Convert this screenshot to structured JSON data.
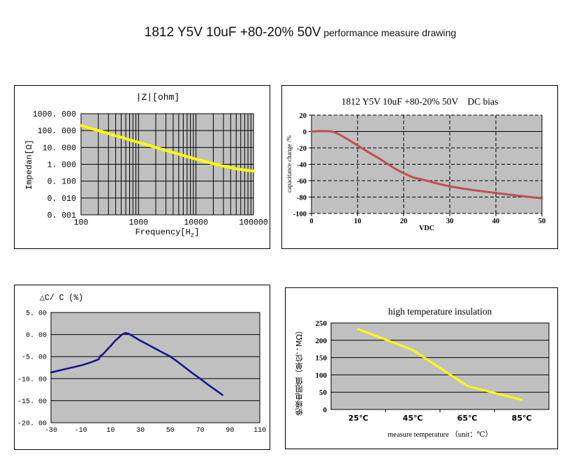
{
  "page": {
    "title_main": "1812 Y5V 10uF +80-20% 50V",
    "title_sub": " performance measure drawing"
  },
  "colors": {
    "plot_bg": "#c0c0c0",
    "grid": "#000000",
    "panel_border": "#000000",
    "impedance_line": "#ffff00",
    "dc_bias_line": "#c0504d",
    "delta_c_line": "#16168c",
    "insulation_line": "#ffff00"
  },
  "chart_data": [
    {
      "id": "impedance",
      "type": "line",
      "title": "|Z|[ohm]",
      "ylabel": "Impedan[Ω]",
      "xlabel_main": "Frequency[H",
      "xlabel_sub": "z",
      "xlabel_close": "]",
      "xscale": "log",
      "yscale": "log",
      "xlim": [
        100,
        100000
      ],
      "ylim": [
        0.001,
        1000
      ],
      "xticks": [
        {
          "v": 100,
          "label": "100"
        },
        {
          "v": 1000,
          "label": "1000"
        },
        {
          "v": 10000,
          "label": "10000"
        },
        {
          "v": 100000,
          "label": "100000"
        }
      ],
      "yticks": [
        {
          "v": 1000,
          "label": "1000. 000"
        },
        {
          "v": 100,
          "label": "100. 000"
        },
        {
          "v": 10,
          "label": "10. 000"
        },
        {
          "v": 1,
          "label": "1. 000"
        },
        {
          "v": 0.1,
          "label": "0. 100"
        },
        {
          "v": 0.01,
          "label": "0. 010"
        },
        {
          "v": 0.001,
          "label": "0. 001"
        }
      ],
      "grid": "log minor vertical, major horizontal, solid",
      "line_color": "#ffff00",
      "points": [
        [
          100,
          199
        ],
        [
          150,
          132.7
        ],
        [
          200,
          99.5
        ],
        [
          300,
          66.3
        ],
        [
          400,
          49.8
        ],
        [
          600,
          33.2
        ],
        [
          800,
          24.9
        ],
        [
          1000,
          19.9
        ],
        [
          1500,
          13.3
        ],
        [
          2000,
          9.95
        ],
        [
          3000,
          6.64
        ],
        [
          5000,
          3.99
        ],
        [
          7000,
          2.87
        ],
        [
          10000,
          2.03
        ],
        [
          15000,
          1.4
        ],
        [
          20000,
          1.08
        ],
        [
          30000,
          0.78
        ],
        [
          50000,
          0.54
        ],
        [
          70000,
          0.46
        ],
        [
          100000,
          0.4
        ]
      ]
    },
    {
      "id": "dc-bias",
      "type": "line",
      "title": "1812 Y5V 10uF +80-20% 50V    DC bias",
      "ylabel": "capacitance change /%",
      "xlabel": "VDC",
      "xscale": "linear",
      "yscale": "linear",
      "xlim": [
        0,
        50
      ],
      "ylim": [
        -100,
        20
      ],
      "xticks": [
        {
          "v": 0,
          "label": "0"
        },
        {
          "v": 10,
          "label": "10"
        },
        {
          "v": 20,
          "label": "20"
        },
        {
          "v": 30,
          "label": "30"
        },
        {
          "v": 40,
          "label": "40"
        },
        {
          "v": 50,
          "label": "50"
        }
      ],
      "yticks": [
        {
          "v": 20,
          "label": "20"
        },
        {
          "v": 0,
          "label": "0"
        },
        {
          "v": -20,
          "label": "-20"
        },
        {
          "v": -40,
          "label": "-40"
        },
        {
          "v": -60,
          "label": "-60"
        },
        {
          "v": -80,
          "label": "-80"
        },
        {
          "v": -100,
          "label": "-100"
        }
      ],
      "grid": "dashed verticals at 10-40 and horizontals at -20..-100, solid 0 line",
      "line_color": "#c0504d",
      "points": [
        [
          0,
          0
        ],
        [
          2,
          0.5
        ],
        [
          4,
          0.3
        ],
        [
          5,
          -1
        ],
        [
          6,
          -3.5
        ],
        [
          8,
          -10
        ],
        [
          10,
          -17
        ],
        [
          12,
          -24
        ],
        [
          15,
          -34
        ],
        [
          18,
          -45
        ],
        [
          20,
          -51
        ],
        [
          22,
          -56
        ],
        [
          25,
          -60
        ],
        [
          28,
          -64.5
        ],
        [
          30,
          -67
        ],
        [
          35,
          -71.5
        ],
        [
          40,
          -75
        ],
        [
          45,
          -78.5
        ],
        [
          50,
          -81.5
        ]
      ]
    },
    {
      "id": "delta-c",
      "type": "line",
      "title": "△C/ C (%)",
      "xscale": "linear",
      "yscale": "linear",
      "xlim": [
        -30,
        110
      ],
      "ylim": [
        -20,
        5
      ],
      "xticks": [
        {
          "v": -30,
          "label": "-30"
        },
        {
          "v": -10,
          "label": "-10"
        },
        {
          "v": 10,
          "label": "10"
        },
        {
          "v": 30,
          "label": "30"
        },
        {
          "v": 50,
          "label": "50"
        },
        {
          "v": 70,
          "label": "70"
        },
        {
          "v": 90,
          "label": "90"
        },
        {
          "v": 110,
          "label": "110"
        }
      ],
      "yticks": [
        {
          "v": 5,
          "label": "5. 00"
        },
        {
          "v": 0,
          "label": "0. 00"
        },
        {
          "v": -5,
          "label": "-5. 00"
        },
        {
          "v": -10,
          "label": "-10. 00"
        },
        {
          "v": -15,
          "label": "-15. 00"
        },
        {
          "v": -20,
          "label": "-20. 00"
        }
      ],
      "grid": "horizontal solid only",
      "line_color": "#16168c",
      "points": [
        [
          -30,
          -8.6
        ],
        [
          -25,
          -8.2
        ],
        [
          -20,
          -7.8
        ],
        [
          -15,
          -7.4
        ],
        [
          -10,
          -7.0
        ],
        [
          -5,
          -6.5
        ],
        [
          0,
          -5.9
        ],
        [
          2,
          -5.6
        ],
        [
          3,
          -4.9
        ],
        [
          5,
          -4.4
        ],
        [
          8,
          -3.3
        ],
        [
          10,
          -2.6
        ],
        [
          13,
          -1.4
        ],
        [
          16,
          -0.5
        ],
        [
          18,
          0.1
        ],
        [
          20,
          0.35
        ],
        [
          22,
          0.2
        ],
        [
          25,
          -0.4
        ],
        [
          30,
          -1.4
        ],
        [
          35,
          -2.3
        ],
        [
          40,
          -3.2
        ],
        [
          45,
          -4.1
        ],
        [
          50,
          -5.0
        ],
        [
          55,
          -6.2
        ],
        [
          60,
          -7.5
        ],
        [
          65,
          -8.8
        ],
        [
          70,
          -10.0
        ],
        [
          75,
          -11.3
        ],
        [
          80,
          -12.5
        ],
        [
          85,
          -13.7
        ]
      ]
    },
    {
      "id": "insulation",
      "type": "line",
      "title": "high temperature insulation",
      "ylabel": "绝缘电阻值（单位：MΩ）",
      "xlabel": "measure temperature （unit：℃）",
      "xscale": "category",
      "yscale": "linear",
      "ylim": [
        0,
        250
      ],
      "categories": [
        "25℃",
        "45℃",
        "65℃",
        "85℃"
      ],
      "values": [
        232,
        172,
        68,
        28
      ],
      "yticks": [
        {
          "v": 250,
          "label": "250"
        },
        {
          "v": 200,
          "label": "200"
        },
        {
          "v": 150,
          "label": "150"
        },
        {
          "v": 100,
          "label": "100"
        },
        {
          "v": 50,
          "label": "50"
        },
        {
          "v": 0,
          "label": "0"
        }
      ],
      "grid": "horizontal solid only",
      "line_color": "#ffff00"
    }
  ]
}
